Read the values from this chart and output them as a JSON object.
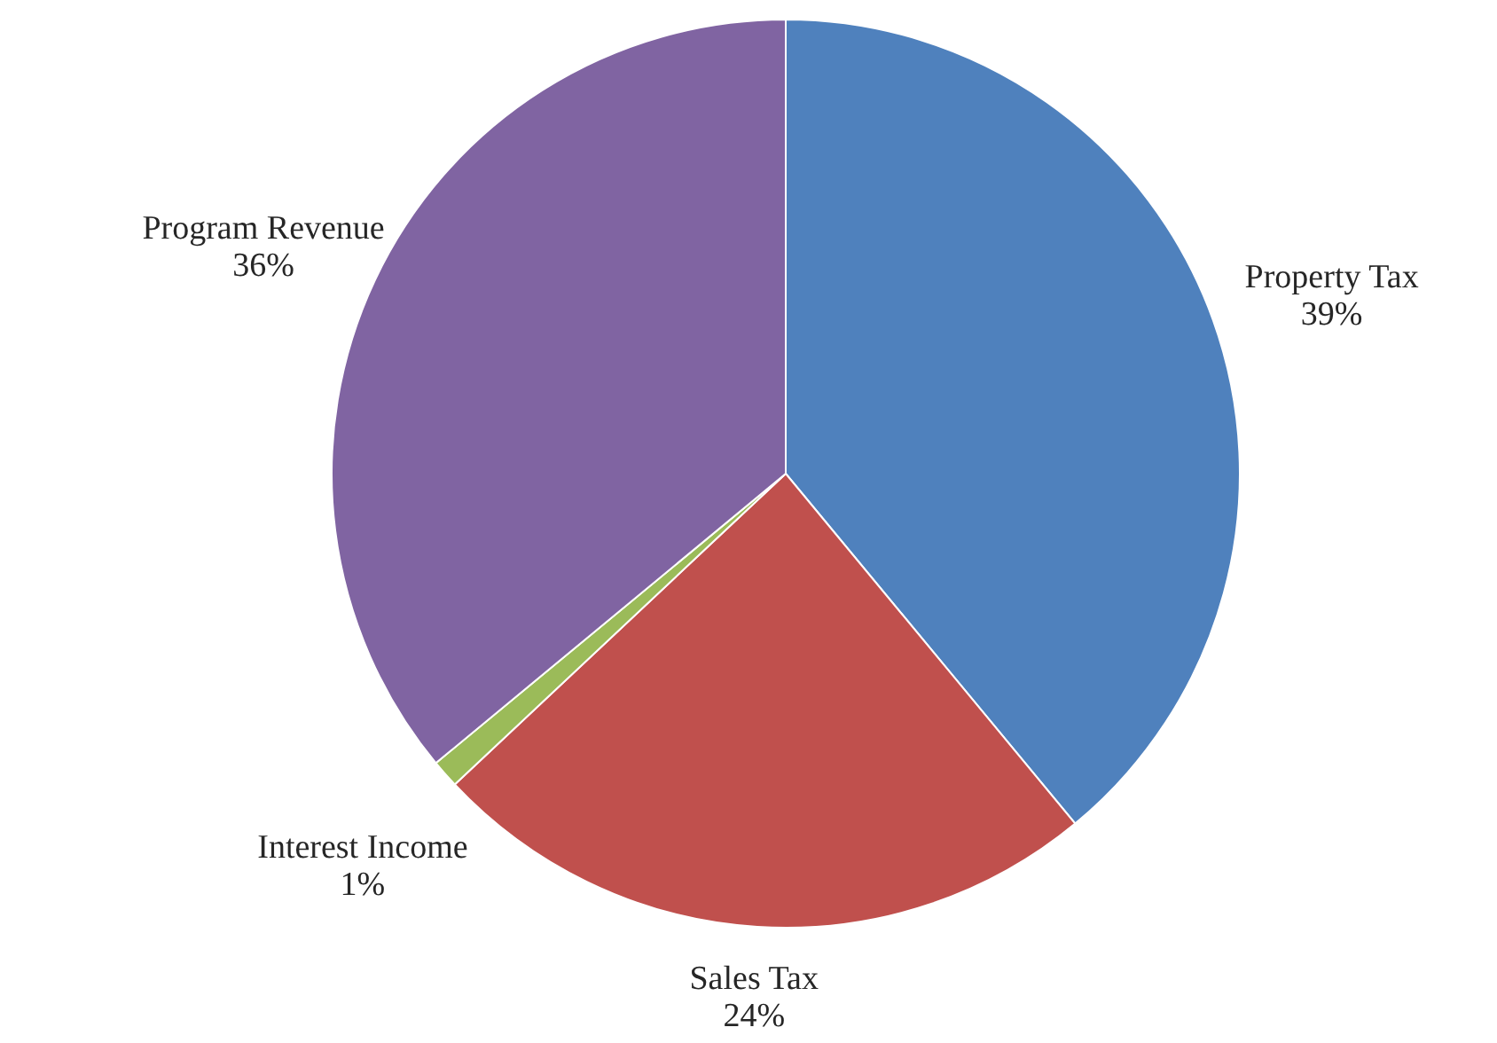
{
  "chart_data": {
    "type": "pie",
    "categories": [
      "Property Tax",
      "Sales Tax",
      "Interest Income",
      "Program Revenue"
    ],
    "values": [
      39,
      24,
      1,
      36
    ],
    "value_labels": [
      "39%",
      "24%",
      "1%",
      "36%"
    ],
    "colors": [
      "#4f81bd",
      "#c0504d",
      "#9bbb59",
      "#8064a2"
    ]
  }
}
